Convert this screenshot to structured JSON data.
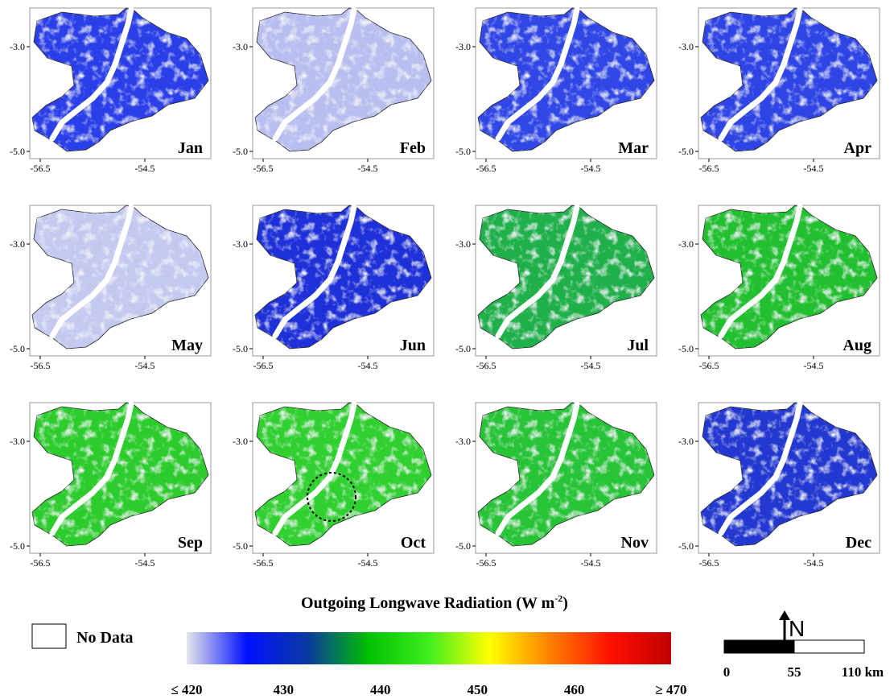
{
  "panels": [
    {
      "label": "Jan",
      "color": "#2a3fe8"
    },
    {
      "label": "Feb",
      "color": "#b8bff0"
    },
    {
      "label": "Mar",
      "color": "#3047e6"
    },
    {
      "label": "Apr",
      "color": "#2e44e4"
    },
    {
      "label": "May",
      "color": "#c4c9f0"
    },
    {
      "label": "Jun",
      "color": "#1e30d8"
    },
    {
      "label": "Jul",
      "color": "#1fb04a"
    },
    {
      "label": "Aug",
      "color": "#22c030"
    },
    {
      "label": "Sep",
      "color": "#2ccc2c"
    },
    {
      "label": "Oct",
      "color": "#30d030"
    },
    {
      "label": "Nov",
      "color": "#28c438"
    },
    {
      "label": "Dec",
      "color": "#2238d0"
    }
  ],
  "axes": {
    "yticks": [
      "-3.0",
      "-5.0"
    ],
    "xticks": [
      "-56.5",
      "-54.5"
    ]
  },
  "legend": {
    "title": "Outgoing Longwave Radiation (W m",
    "title_sup": "-2",
    "title_end": ")",
    "no_data": "No Data",
    "range": [
      420,
      470
    ],
    "ticks": [
      {
        "value": 420,
        "label": "≤ 420"
      },
      430,
      440,
      450,
      460,
      {
        "value": 470,
        "label": "≥ 470"
      }
    ],
    "colors": [
      "#e6e6ea",
      "#0010ff",
      "#0a3aa0",
      "#00c000",
      "#40ee20",
      "#ffff00",
      "#ff8000",
      "#ff1000",
      "#c00000"
    ]
  },
  "north": "N",
  "scale_bar": {
    "labels": [
      "0",
      "55",
      "110 km"
    ]
  }
}
